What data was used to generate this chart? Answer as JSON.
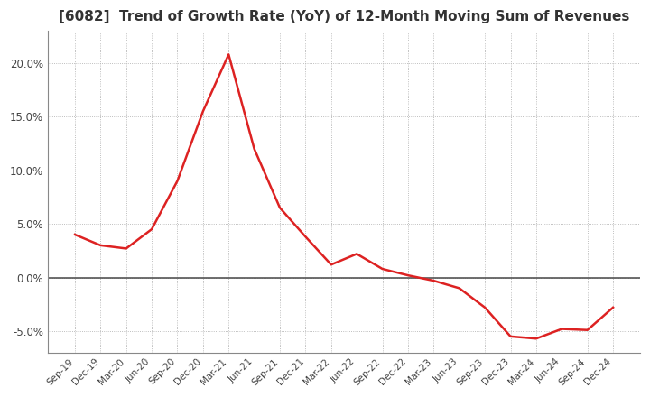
{
  "title": "[6082]  Trend of Growth Rate (YoY) of 12-Month Moving Sum of Revenues",
  "title_fontsize": 11,
  "background_color": "#ffffff",
  "line_color": "#dd2222",
  "grid_color": "#aaaaaa",
  "x_labels": [
    "Sep-19",
    "Dec-19",
    "Mar-20",
    "Jun-20",
    "Sep-20",
    "Dec-20",
    "Mar-21",
    "Jun-21",
    "Sep-21",
    "Dec-21",
    "Mar-22",
    "Jun-22",
    "Sep-22",
    "Dec-22",
    "Mar-23",
    "Jun-23",
    "Sep-23",
    "Dec-23",
    "Mar-24",
    "Jun-24",
    "Sep-24",
    "Dec-24"
  ],
  "y_values": [
    4.0,
    3.0,
    2.7,
    4.5,
    9.0,
    15.5,
    20.8,
    12.0,
    6.5,
    3.8,
    1.2,
    2.2,
    0.8,
    0.2,
    -0.3,
    -1.0,
    -2.8,
    -5.5,
    -5.7,
    -4.8,
    -4.9,
    -2.8
  ],
  "ylim": [
    -7.0,
    23.0
  ],
  "yticks": [
    -5.0,
    0.0,
    5.0,
    10.0,
    15.0,
    20.0
  ]
}
